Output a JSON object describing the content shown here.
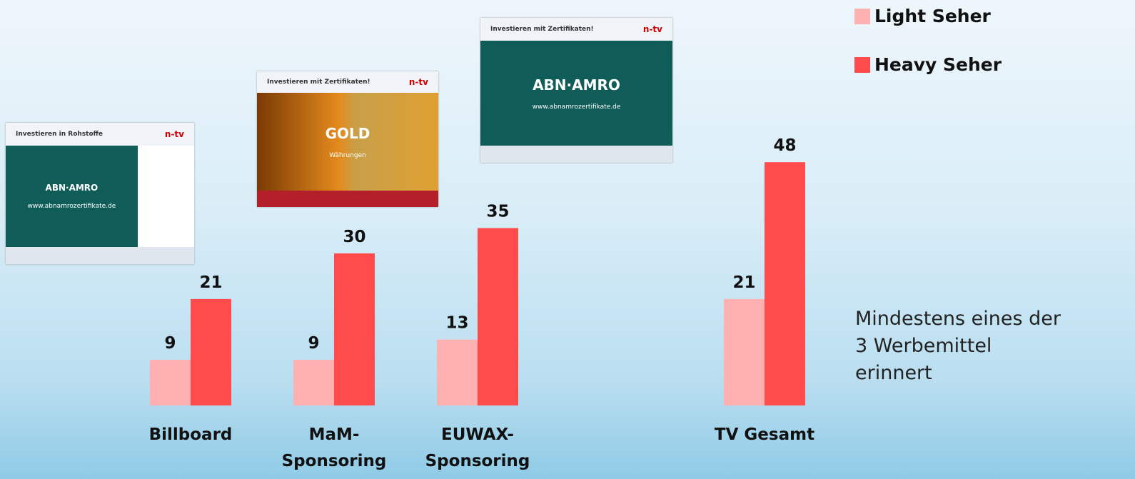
{
  "chart_data": {
    "type": "bar",
    "categories": [
      "Billboard",
      "MaM-\nSponsoring",
      "EUWAX-\nSponsoring",
      null,
      "TV Gesamt"
    ],
    "series": [
      {
        "name": "Light Seher",
        "color": "#ffb0b0",
        "values": [
          9,
          9,
          13,
          null,
          21
        ]
      },
      {
        "name": "Heavy Seher",
        "color": "#ff4b4b",
        "values": [
          21,
          30,
          35,
          null,
          48
        ]
      }
    ],
    "ylim": [
      0,
      50
    ],
    "legend": "top-right",
    "annotation": "Mindestens eines der\n3 Werbemittel\nerinnert"
  },
  "thumbnails": [
    {
      "title": "Investieren in Rohstoffe",
      "logo": "n-tv",
      "brand": "ABN·AMRO",
      "url": "www.abnamrozertifikate.de"
    },
    {
      "title": "Investieren mit Zertifikaten!",
      "logo": "n-tv",
      "brand": "GOLD",
      "url": "Währungen"
    },
    {
      "title": "Investieren mit Zertifikaten!",
      "logo": "n-tv",
      "brand": "ABN·AMRO",
      "url": "www.abnamrozertifikate.de"
    }
  ]
}
